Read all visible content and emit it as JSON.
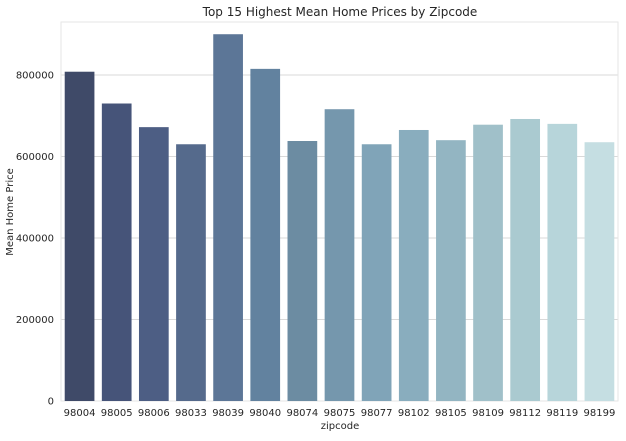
{
  "chart_data": {
    "type": "bar",
    "title": "Top 15 Highest Mean Home Prices by Zipcode",
    "xlabel": "zipcode",
    "ylabel": "Mean Home Price",
    "categories": [
      "98004",
      "98005",
      "98006",
      "98033",
      "98039",
      "98040",
      "98074",
      "98075",
      "98077",
      "98102",
      "98105",
      "98109",
      "98112",
      "98119",
      "98199"
    ],
    "values": [
      808000,
      730000,
      672000,
      630000,
      900000,
      815000,
      638000,
      716000,
      630000,
      665000,
      640000,
      678000,
      692000,
      680000,
      635000
    ],
    "ylim": [
      0,
      930000
    ],
    "yticks": [
      0,
      200000,
      400000,
      600000,
      800000
    ],
    "ytick_labels": [
      "0",
      "200000",
      "400000",
      "600000",
      "800000"
    ],
    "grid": true,
    "legend": "none",
    "colors": [
      "#3f4a68",
      "#465479",
      "#4d5e84",
      "#556a8c",
      "#5c7697",
      "#62829f",
      "#6c8ca2",
      "#7597ad",
      "#80a4b8",
      "#89adbe",
      "#93b5c2",
      "#a0c0c9",
      "#aacad0",
      "#b7d5da",
      "#c5dee2"
    ]
  }
}
